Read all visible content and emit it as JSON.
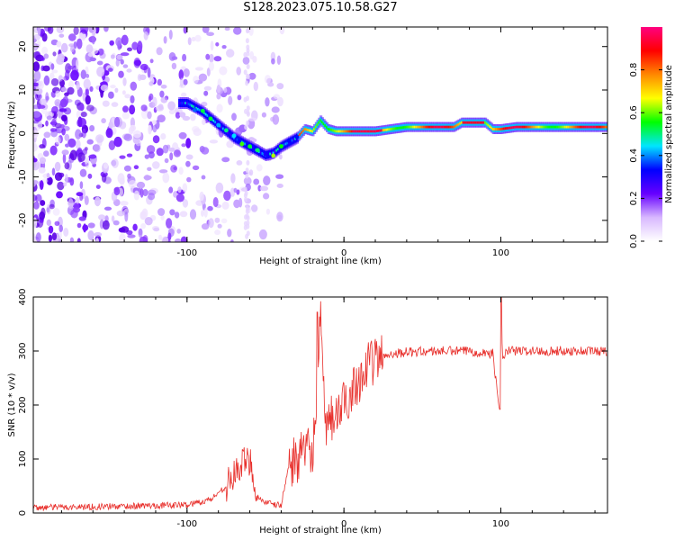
{
  "figure": {
    "title": "S128.2023.075.10.58.G27"
  },
  "chart_data": [
    {
      "type": "heatmap",
      "name": "spectrogram",
      "xlabel": "Height of straight line (km)",
      "ylabel": "Frequency (Hz)",
      "xlim": [
        -198,
        168
      ],
      "ylim": [
        -25,
        24.5
      ],
      "xticks": [
        -100,
        0,
        100
      ],
      "yticks": [
        -20,
        -10,
        0,
        10,
        20
      ],
      "colorbar": {
        "label": "Normalized spectral amplitude",
        "range": [
          0,
          1
        ],
        "ticks": [
          0.0,
          0.2,
          0.4,
          0.6,
          0.8
        ],
        "colors": [
          "#ffffff",
          "#d8b8ff",
          "#6600ff",
          "#0000ff",
          "#00e5ff",
          "#00ff00",
          "#ffff00",
          "#ff8800",
          "#ff0000",
          "#ff0080"
        ]
      },
      "ridge": {
        "description": "dominant frequency track",
        "x": [
          -100,
          -90,
          -80,
          -70,
          -60,
          -50,
          -45,
          -40,
          -35,
          -30,
          -25,
          -20,
          -15,
          -10,
          -5,
          0,
          20,
          40,
          60,
          70,
          75,
          80,
          90,
          95,
          100,
          110,
          168
        ],
        "y": [
          7,
          5,
          2,
          -1,
          -3,
          -5,
          -4.5,
          -3,
          -2,
          -1,
          1,
          0.5,
          3,
          1,
          0.5,
          0.5,
          0.5,
          1.5,
          1.5,
          1.5,
          2.5,
          2.5,
          2.5,
          1,
          1,
          1.5,
          1.5
        ]
      }
    },
    {
      "type": "line",
      "name": "snr",
      "xlabel": "Height of straight line (km)",
      "ylabel": "SNR (10 * v/v)",
      "xlim": [
        -198,
        168
      ],
      "ylim": [
        0,
        400
      ],
      "xticks": [
        -100,
        0,
        100
      ],
      "yticks": [
        0,
        100,
        200,
        300,
        400
      ],
      "line_color": "#e8302c",
      "series_shape": {
        "x": [
          -198,
          -150,
          -100,
          -85,
          -75,
          -70,
          -65,
          -60,
          -55,
          -50,
          -45,
          -40,
          -35,
          -30,
          -25,
          -20,
          -17,
          -15,
          -12,
          -10,
          -5,
          0,
          5,
          10,
          15,
          20,
          25,
          30,
          40,
          60,
          80,
          95,
          99,
          100,
          101,
          105,
          120,
          140,
          168
        ],
        "y": [
          10,
          12,
          15,
          25,
          50,
          70,
          90,
          100,
          30,
          20,
          15,
          15,
          90,
          100,
          110,
          120,
          200,
          370,
          150,
          170,
          180,
          200,
          230,
          250,
          270,
          285,
          290,
          295,
          298,
          300,
          300,
          295,
          190,
          400,
          290,
          300,
          300,
          300,
          300
        ]
      }
    }
  ]
}
